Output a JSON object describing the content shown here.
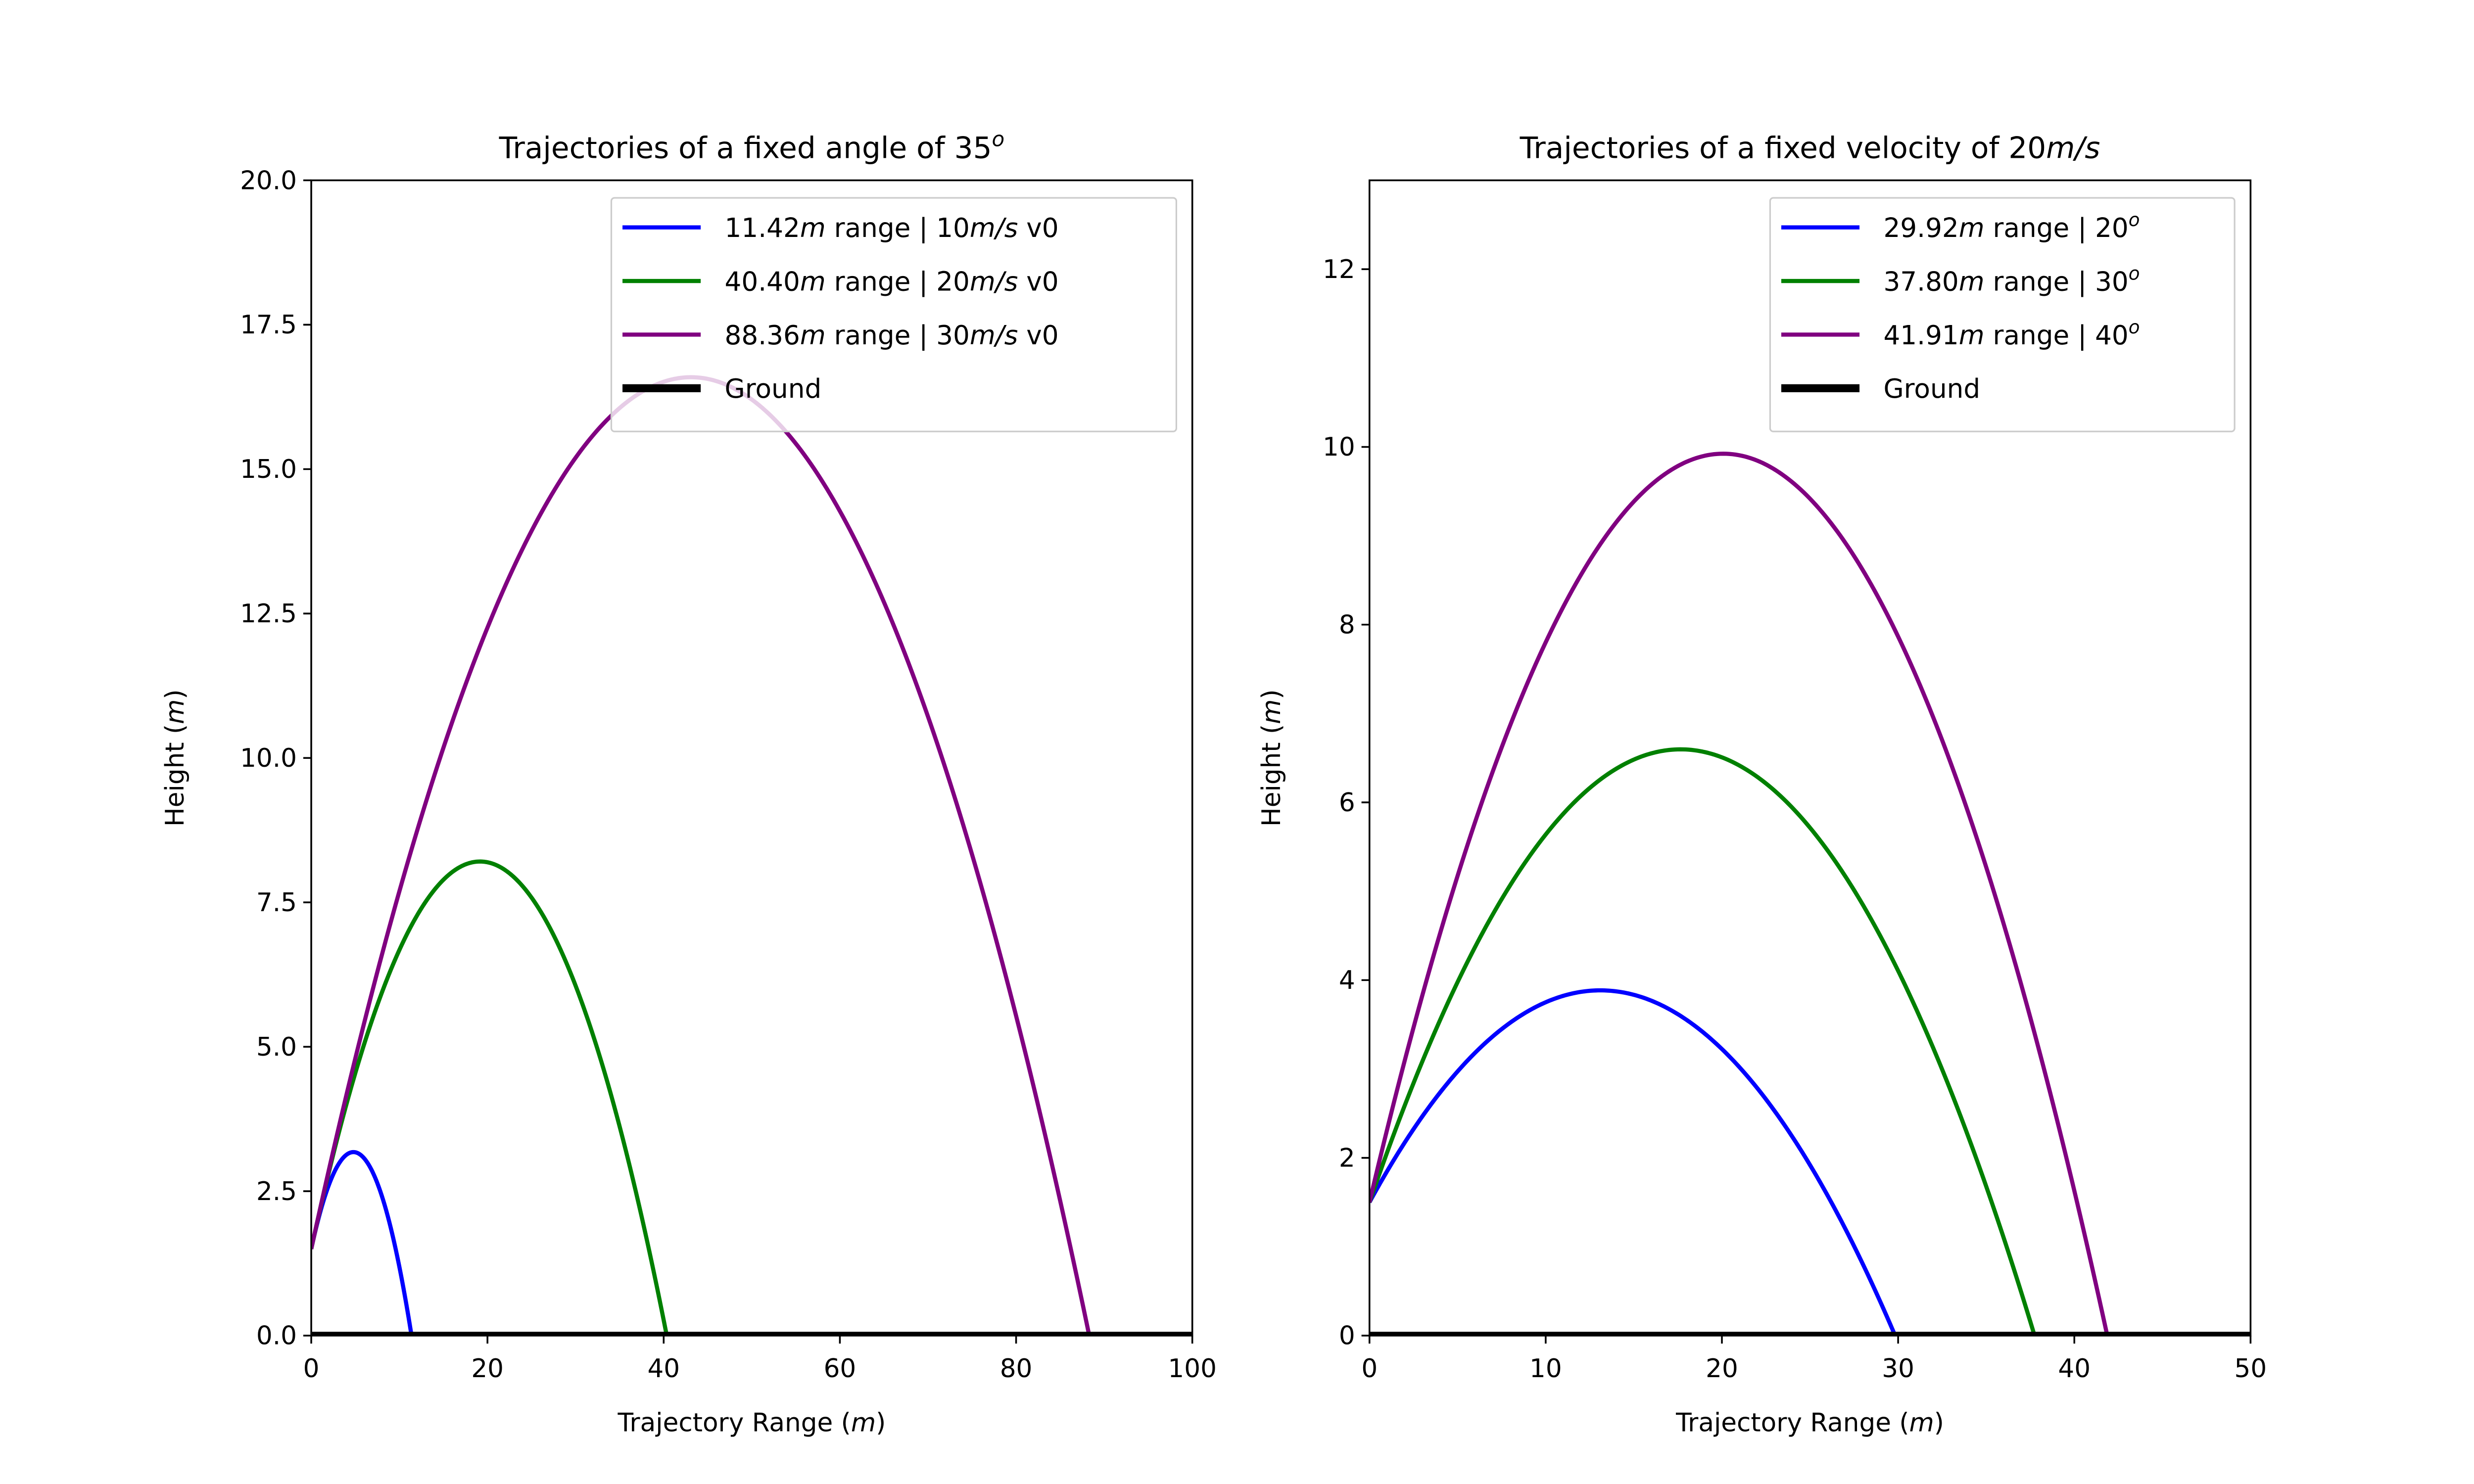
{
  "chart_data": [
    {
      "type": "line",
      "title": "Trajectories of a fixed angle of 35",
      "title_sup": "o",
      "xlabel": "Trajectory Range",
      "xlabel_unit": "m",
      "ylabel": "Height",
      "ylabel_unit": "m",
      "xlim": [
        0,
        100
      ],
      "ylim": [
        0,
        20
      ],
      "xticks": [
        0,
        20,
        40,
        60,
        80,
        100
      ],
      "xtick_labels": [
        "0",
        "20",
        "40",
        "60",
        "80",
        "100"
      ],
      "yticks": [
        0,
        2.5,
        5,
        7.5,
        10,
        12.5,
        15,
        17.5,
        20
      ],
      "ytick_labels": [
        "0.0",
        "2.5",
        "5.0",
        "7.5",
        "10.0",
        "12.5",
        "15.0",
        "17.5",
        "20.0"
      ],
      "grid": false,
      "legend_position": "top-right",
      "legend": [
        {
          "parts": [
            {
              "t": "11.42"
            },
            {
              "t": "m",
              "i": true
            },
            {
              "t": " range | 10"
            },
            {
              "t": "m/s",
              "i": true
            },
            {
              "t": " v0"
            }
          ],
          "color": "#0000ff"
        },
        {
          "parts": [
            {
              "t": "40.40"
            },
            {
              "t": "m",
              "i": true
            },
            {
              "t": " range | 20"
            },
            {
              "t": "m/s",
              "i": true
            },
            {
              "t": " v0"
            }
          ],
          "color": "#008000"
        },
        {
          "parts": [
            {
              "t": "88.36"
            },
            {
              "t": "m",
              "i": true
            },
            {
              "t": " range | 30"
            },
            {
              "t": "m/s",
              "i": true
            },
            {
              "t": " v0"
            }
          ],
          "color": "#800080"
        },
        {
          "parts": [
            {
              "t": "Ground"
            }
          ],
          "color": "#000000",
          "ground": true
        }
      ],
      "series": [
        {
          "type": "projectile",
          "v0": 10,
          "angle_deg": 35,
          "h0": 1.5,
          "range": 11.42,
          "color": "#0000ff"
        },
        {
          "type": "projectile",
          "v0": 20,
          "angle_deg": 35,
          "h0": 1.5,
          "range": 40.4,
          "color": "#008000"
        },
        {
          "type": "projectile",
          "v0": 30,
          "angle_deg": 35,
          "h0": 1.5,
          "range": 88.36,
          "color": "#800080"
        }
      ],
      "ground": {
        "y": 0,
        "color": "#000000"
      }
    },
    {
      "type": "line",
      "title": "Trajectories of a fixed velocity of 20",
      "title_unit": "m/s",
      "xlabel": "Trajectory Range",
      "xlabel_unit": "m",
      "ylabel": "Height",
      "ylabel_unit": "m",
      "xlim": [
        0,
        50
      ],
      "ylim": [
        0,
        13
      ],
      "xticks": [
        0,
        10,
        20,
        30,
        40,
        50
      ],
      "xtick_labels": [
        "0",
        "10",
        "20",
        "30",
        "40",
        "50"
      ],
      "yticks": [
        0,
        2,
        4,
        6,
        8,
        10,
        12
      ],
      "ytick_labels": [
        "0",
        "2",
        "4",
        "6",
        "8",
        "10",
        "12"
      ],
      "grid": false,
      "legend_position": "top-right",
      "legend": [
        {
          "parts": [
            {
              "t": "29.92"
            },
            {
              "t": "m",
              "i": true
            },
            {
              "t": " range | 20"
            },
            {
              "t": "o",
              "sup": true
            }
          ],
          "color": "#0000ff"
        },
        {
          "parts": [
            {
              "t": "37.80"
            },
            {
              "t": "m",
              "i": true
            },
            {
              "t": " range | 30"
            },
            {
              "t": "o",
              "sup": true
            }
          ],
          "color": "#008000"
        },
        {
          "parts": [
            {
              "t": "41.91"
            },
            {
              "t": "m",
              "i": true
            },
            {
              "t": " range | 40"
            },
            {
              "t": "o",
              "sup": true
            }
          ],
          "color": "#800080"
        },
        {
          "parts": [
            {
              "t": "Ground"
            }
          ],
          "color": "#000000",
          "ground": true
        }
      ],
      "series": [
        {
          "type": "projectile",
          "v0": 20,
          "angle_deg": 20,
          "h0": 1.5,
          "range": 29.92,
          "color": "#0000ff"
        },
        {
          "type": "projectile",
          "v0": 20,
          "angle_deg": 30,
          "h0": 1.5,
          "range": 37.8,
          "color": "#008000"
        },
        {
          "type": "projectile",
          "v0": 20,
          "angle_deg": 40,
          "h0": 1.5,
          "range": 41.91,
          "color": "#800080"
        }
      ],
      "ground": {
        "y": 0,
        "color": "#000000"
      }
    }
  ]
}
